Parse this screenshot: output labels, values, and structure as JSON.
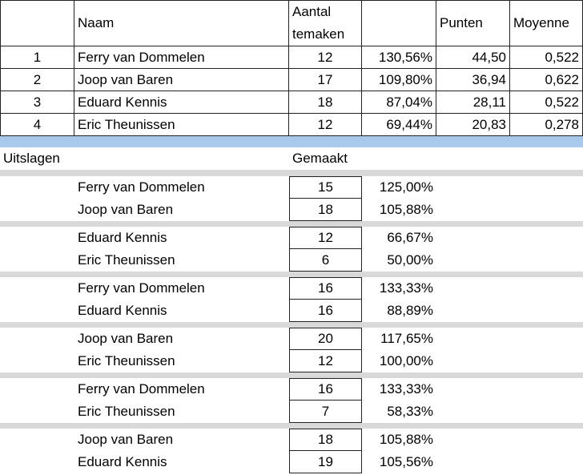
{
  "standings": {
    "header": [
      "Naam",
      "Aantal temaken",
      "Punten",
      "Moyenne"
    ],
    "rows": [
      [
        "1",
        "Ferry van Dommelen",
        "12",
        "130,56%",
        "44,50",
        "0,522"
      ],
      [
        "2",
        "Joop van Baren",
        "17",
        "109,80%",
        "36,94",
        "0,622"
      ],
      [
        "3",
        "Eduard Kennis",
        "18",
        "87,04%",
        "28,11",
        "0,522"
      ],
      [
        "4",
        "Eric Theunissen",
        "12",
        "69,44%",
        "20,83",
        "0,278"
      ]
    ]
  },
  "results": {
    "title": "Uitslagen",
    "made_label": "Gemaakt",
    "matches": [
      [
        [
          "Ferry van Dommelen",
          "15",
          "125,00%"
        ],
        [
          "Joop van Baren",
          "18",
          "105,88%"
        ]
      ],
      [
        [
          "Eduard Kennis",
          "12",
          "66,67%"
        ],
        [
          "Eric Theunissen",
          "6",
          "50,00%"
        ]
      ],
      [
        [
          "Ferry van Dommelen",
          "16",
          "133,33%"
        ],
        [
          "Eduard Kennis",
          "16",
          "88,89%"
        ]
      ],
      [
        [
          "Joop van Baren",
          "20",
          "117,65%"
        ],
        [
          "Eric Theunissen",
          "12",
          "100,00%"
        ]
      ],
      [
        [
          "Ferry van Dommelen",
          "16",
          "133,33%"
        ],
        [
          "Eric Theunissen",
          "7",
          "58,33%"
        ]
      ],
      [
        [
          "Joop van Baren",
          "18",
          "105,88%"
        ],
        [
          "Eduard Kennis",
          "19",
          "105,56%"
        ]
      ]
    ]
  }
}
